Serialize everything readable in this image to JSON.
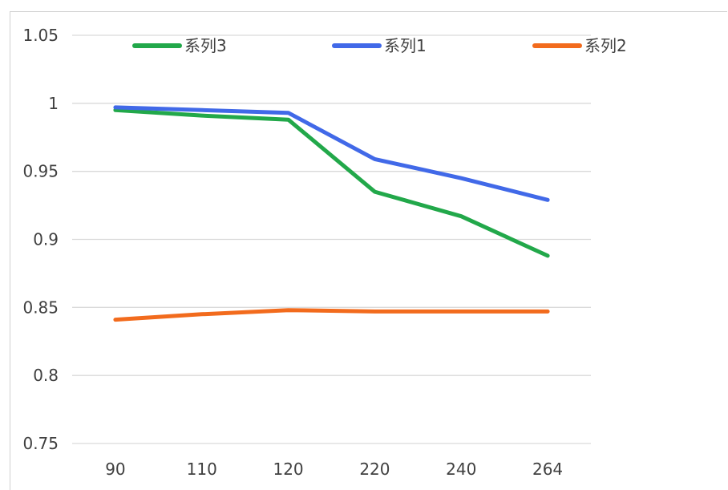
{
  "chart_data": {
    "type": "line",
    "title": "",
    "xlabel": "",
    "ylabel": "",
    "categories": [
      "90",
      "110",
      "120",
      "220",
      "240",
      "264"
    ],
    "ylim": [
      0.75,
      1.05
    ],
    "yticks": [
      "0.75",
      "0.8",
      "0.85",
      "0.9",
      "0.95",
      "1",
      "1.05"
    ],
    "grid": true,
    "legend_position": "top",
    "series": [
      {
        "name": "系列3",
        "color": "#22a84a",
        "values": [
          0.995,
          0.991,
          0.988,
          0.935,
          0.917,
          0.888
        ]
      },
      {
        "name": "系列1",
        "color": "#4169e8",
        "values": [
          0.997,
          0.995,
          0.993,
          0.959,
          0.945,
          0.929
        ]
      },
      {
        "name": "系列2",
        "color": "#f26b1d",
        "values": [
          0.841,
          0.845,
          0.848,
          0.847,
          0.847,
          0.847
        ]
      }
    ]
  }
}
